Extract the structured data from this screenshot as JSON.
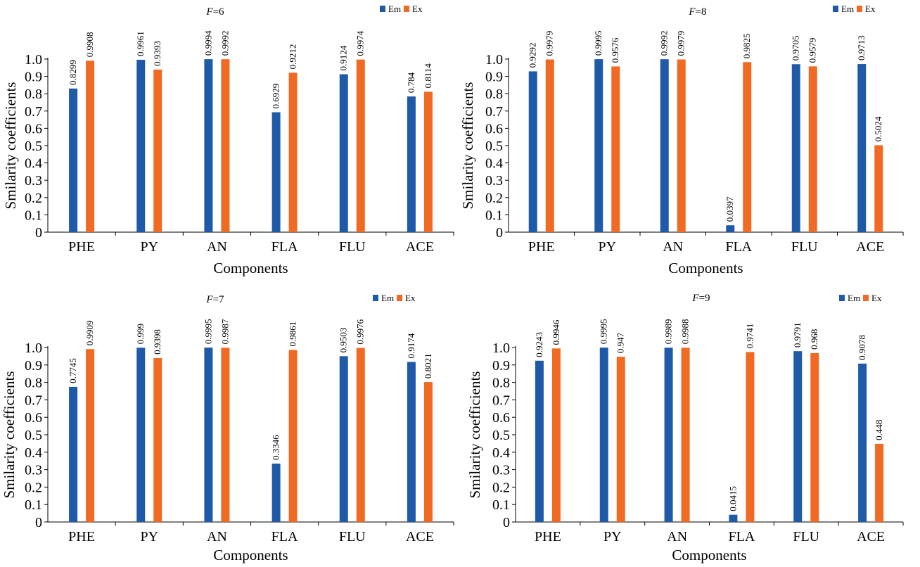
{
  "colors": {
    "em": "#1f5aa8",
    "ex": "#f06a24"
  },
  "chart_data": [
    {
      "type": "bar",
      "title_italic": "F",
      "title_rest": "=6",
      "xlabel": "Components",
      "ylabel": "Smilarity coefficients",
      "ylim": [
        0,
        1.0
      ],
      "yticks": [
        "0",
        "0.1",
        "0.2",
        "0.3",
        "0.4",
        "0.5",
        "0.6",
        "0.7",
        "0.8",
        "0.9",
        "1.0"
      ],
      "categories": [
        "PHE",
        "PY",
        "AN",
        "FLA",
        "FLU",
        "ACE"
      ],
      "series": [
        {
          "name": "Em",
          "values": [
            0.8299,
            0.9961,
            0.9994,
            0.6929,
            0.9124,
            0.784
          ],
          "labels": [
            "0.8299",
            "0.9961",
            "0.9994",
            "0.6929",
            "0.9124",
            "0.784"
          ]
        },
        {
          "name": "Ex",
          "values": [
            0.9908,
            0.9393,
            0.9992,
            0.9212,
            0.9974,
            0.8114
          ],
          "labels": [
            "0.9908",
            "0.9393",
            "0.9992",
            "0.9212",
            "0.9974",
            "0.8114"
          ]
        }
      ],
      "legend_position": "top-right"
    },
    {
      "type": "bar",
      "title_italic": "F",
      "title_rest": "=8",
      "xlabel": "Components",
      "ylabel": "Smilarity coefficients",
      "ylim": [
        0,
        1.0
      ],
      "yticks": [
        "0",
        "0.1",
        "0.2",
        "0.3",
        "0.4",
        "0.5",
        "0.6",
        "0.7",
        "0.8",
        "0.9",
        "1.0"
      ],
      "categories": [
        "PHE",
        "PY",
        "AN",
        "FLA",
        "FLU",
        "ACE"
      ],
      "series": [
        {
          "name": "Em",
          "values": [
            0.9292,
            0.9995,
            0.9992,
            0.0397,
            0.9705,
            0.9713
          ],
          "labels": [
            "0.9292",
            "0.9995",
            "0.9992",
            "0.0397",
            "0.9705",
            "0.9713"
          ]
        },
        {
          "name": "Ex",
          "values": [
            0.9979,
            0.9576,
            0.9979,
            0.9825,
            0.9579,
            0.5024
          ],
          "labels": [
            "0.9979",
            "0.9576",
            "0.9979",
            "0.9825",
            "0.9579",
            "0.5024"
          ]
        }
      ],
      "legend_position": "top-right"
    },
    {
      "type": "bar",
      "title_italic": "F",
      "title_rest": "=7",
      "xlabel": "Components",
      "ylabel": "Smilarity coefficients",
      "ylim": [
        0,
        1.0
      ],
      "yticks": [
        "0",
        "0.1",
        "0.2",
        "0.3",
        "0.4",
        "0.5",
        "0.6",
        "0.7",
        "0.8",
        "0.9",
        "1.0"
      ],
      "categories": [
        "PHE",
        "PY",
        "AN",
        "FLA",
        "FLU",
        "ACE"
      ],
      "series": [
        {
          "name": "Em",
          "values": [
            0.7745,
            0.999,
            0.9995,
            0.3346,
            0.9503,
            0.9174
          ],
          "labels": [
            "0.7745",
            "0.999",
            "0.9995",
            "0.3346",
            "0.9503",
            "0.9174"
          ]
        },
        {
          "name": "Ex",
          "values": [
            0.9909,
            0.9398,
            0.9987,
            0.9861,
            0.9976,
            0.8021
          ],
          "labels": [
            "0.9909",
            "0.9398",
            "0.9987",
            "0.9861",
            "0.9976",
            "0.8021"
          ]
        }
      ],
      "legend_position": "top-right"
    },
    {
      "type": "bar",
      "title_italic": "F",
      "title_rest": "=9",
      "xlabel": "Components",
      "ylabel": "Smilarity coefficients",
      "ylim": [
        0,
        1.0
      ],
      "yticks": [
        "0",
        "0.1",
        "0.2",
        "0.3",
        "0.4",
        "0.5",
        "0.6",
        "0.7",
        "0.8",
        "0.9",
        "1.0"
      ],
      "categories": [
        "PHE",
        "PY",
        "AN",
        "FLA",
        "FLU",
        "ACE"
      ],
      "series": [
        {
          "name": "Em",
          "values": [
            0.9243,
            0.9995,
            0.9989,
            0.0415,
            0.9791,
            0.9078
          ],
          "labels": [
            "0.9243",
            "0.9995",
            "0.9989",
            "0.0415",
            "0.9791",
            "0.9078"
          ]
        },
        {
          "name": "Ex",
          "values": [
            0.9946,
            0.947,
            0.9988,
            0.9741,
            0.968,
            0.448
          ],
          "labels": [
            "0.9946",
            "0.947",
            "0.9988",
            "0.9741",
            "0.968",
            "0.448"
          ]
        }
      ],
      "legend_position": "top-right"
    }
  ]
}
